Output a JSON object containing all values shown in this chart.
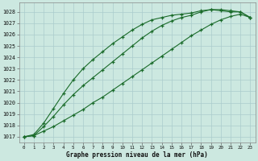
{
  "title": "Graphe pression niveau de la mer (hPa)",
  "background_color": "#cce8e0",
  "grid_color": "#aacccc",
  "line_color": "#1a6b2a",
  "xlim": [
    -0.5,
    23.5
  ],
  "ylim": [
    1016.5,
    1028.8
  ],
  "yticks": [
    1017,
    1018,
    1019,
    1020,
    1021,
    1022,
    1023,
    1024,
    1025,
    1026,
    1027,
    1028
  ],
  "xticks": [
    0,
    1,
    2,
    3,
    4,
    5,
    6,
    7,
    8,
    9,
    10,
    11,
    12,
    13,
    14,
    15,
    16,
    17,
    18,
    19,
    20,
    21,
    22,
    23
  ],
  "series1": {
    "x": [
      0,
      1,
      2,
      3,
      4,
      5,
      6,
      7,
      8,
      9,
      10,
      11,
      12,
      13,
      14,
      15,
      16,
      17,
      18,
      19,
      20,
      21,
      22,
      23
    ],
    "y": [
      1017.0,
      1017.2,
      1018.2,
      1019.5,
      1020.8,
      1022.0,
      1023.0,
      1023.8,
      1024.5,
      1025.2,
      1025.8,
      1026.4,
      1026.9,
      1027.3,
      1027.5,
      1027.7,
      1027.8,
      1027.9,
      1028.1,
      1028.2,
      1028.1,
      1028.0,
      1028.0,
      1027.5
    ]
  },
  "series2": {
    "x": [
      0,
      1,
      2,
      3,
      4,
      5,
      6,
      7,
      8,
      9,
      10,
      11,
      12,
      13,
      14,
      15,
      16,
      17,
      18,
      19,
      20,
      21,
      22,
      23
    ],
    "y": [
      1017.0,
      1017.1,
      1017.9,
      1018.8,
      1019.8,
      1020.7,
      1021.5,
      1022.2,
      1022.9,
      1023.6,
      1024.3,
      1025.0,
      1025.7,
      1026.3,
      1026.8,
      1027.2,
      1027.5,
      1027.7,
      1028.0,
      1028.2,
      1028.2,
      1028.1,
      1028.0,
      1027.5
    ]
  },
  "series3": {
    "x": [
      0,
      1,
      2,
      3,
      4,
      5,
      6,
      7,
      8,
      9,
      10,
      11,
      12,
      13,
      14,
      15,
      16,
      17,
      18,
      19,
      20,
      21,
      22,
      23
    ],
    "y": [
      1017.0,
      1017.1,
      1017.5,
      1017.9,
      1018.4,
      1018.9,
      1019.4,
      1020.0,
      1020.5,
      1021.1,
      1021.7,
      1022.3,
      1022.9,
      1023.5,
      1024.1,
      1024.7,
      1025.3,
      1025.9,
      1026.4,
      1026.9,
      1027.3,
      1027.6,
      1027.8,
      1027.5
    ]
  }
}
